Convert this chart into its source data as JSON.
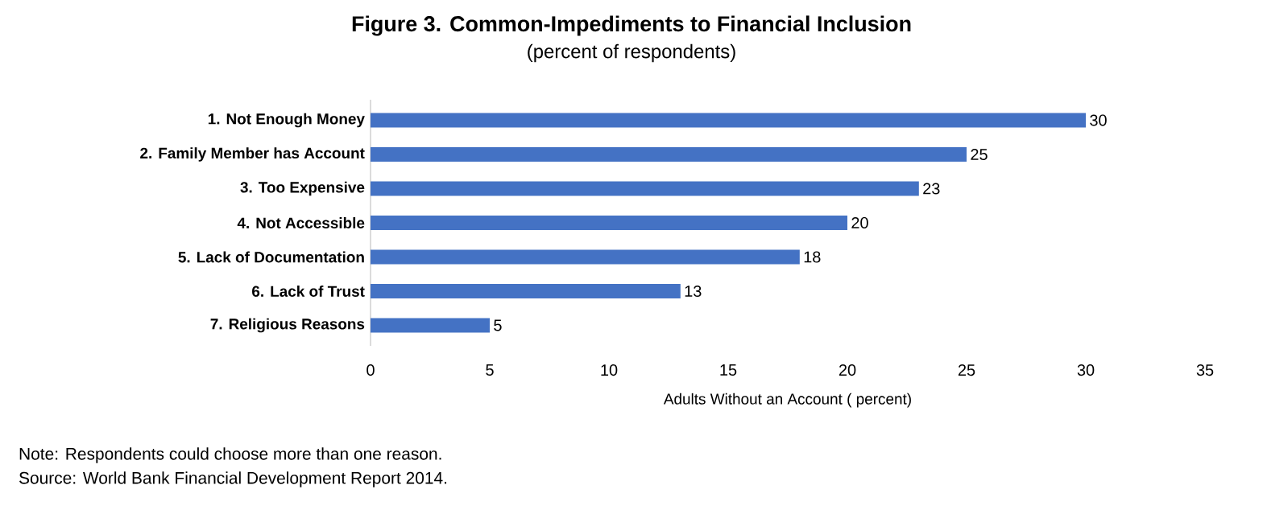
{
  "chart_data": {
    "type": "bar",
    "orientation": "horizontal",
    "title": "Figure 3. Common-Impediments to Financial Inclusion",
    "subtitle": "(percent of respondents)",
    "xlabel": "Adults Without an Account ( percent)",
    "categories": [
      "1. Not Enough Money",
      "2. Family Member has Account",
      "3. Too Expensive",
      "4. Not Accessible",
      "5. Lack of Documentation",
      "6. Lack of Trust",
      "7. Religious Reasons"
    ],
    "values": [
      30,
      25,
      23,
      20,
      18,
      13,
      5
    ],
    "color": "#4472c4",
    "data_labels": true,
    "xlim": [
      0,
      35
    ],
    "xticks": [
      0,
      5,
      10,
      15,
      20,
      25,
      30,
      35
    ],
    "grid": false,
    "annotations": [
      "Note: Respondents could choose more than one reason.",
      "Source: World Bank Financial Development Report 2014."
    ]
  }
}
